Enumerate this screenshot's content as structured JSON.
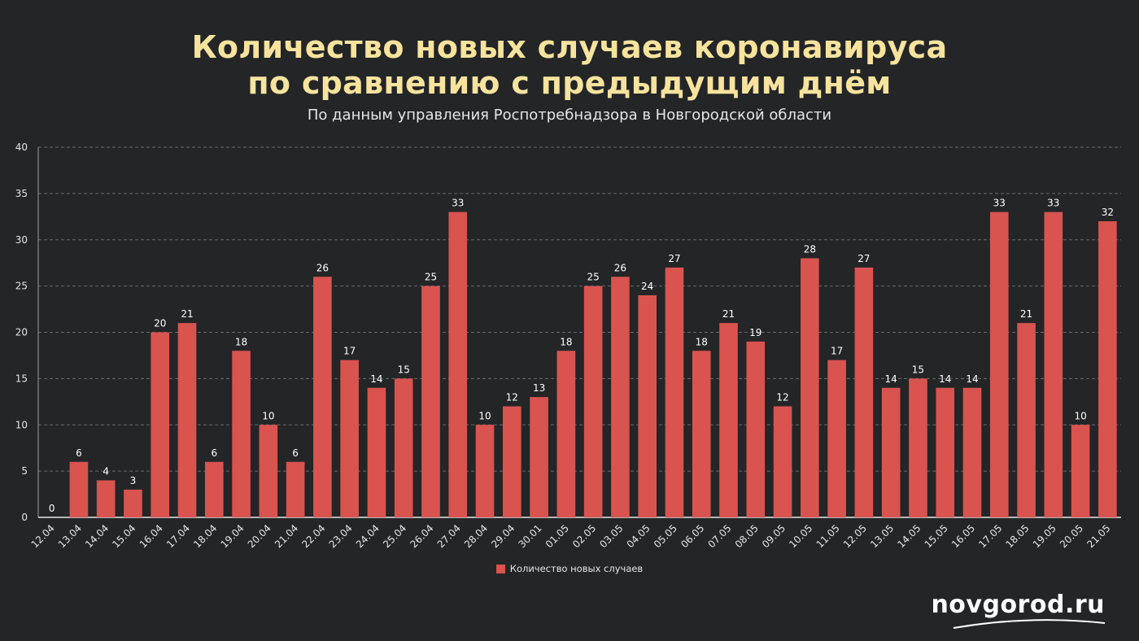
{
  "title_line1": "Количество новых случаев коронавируса",
  "title_line2": "по сравнению с предыдущим днём",
  "subtitle": "По данным управления Роспотребнадзора в Новгородской области",
  "brand": "novgorod.ru",
  "colors": {
    "background": "#232527",
    "bar": "#d9534f",
    "title": "#f7e39d"
  },
  "chart_data": {
    "type": "bar",
    "categories": [
      "12.04",
      "13.04",
      "14.04",
      "15.04",
      "16.04",
      "17.04",
      "18.04",
      "19.04",
      "20.04",
      "21.04",
      "22.04",
      "23.04",
      "24.04",
      "25.04",
      "26.04",
      "27.04",
      "28.04",
      "29.04",
      "30.01",
      "01.05",
      "02.05",
      "03.05",
      "04.05",
      "05.05",
      "06.05",
      "07.05",
      "08.05",
      "09.05",
      "10.05",
      "11.05",
      "12.05",
      "13.05",
      "14.05",
      "15.05",
      "16.05",
      "17.05",
      "18.05",
      "19.05",
      "20.05",
      "21.05"
    ],
    "series": [
      {
        "name": "Количество новых случаев",
        "values": [
          0,
          6,
          4,
          3,
          20,
          21,
          6,
          18,
          10,
          6,
          26,
          17,
          14,
          15,
          25,
          33,
          10,
          12,
          13,
          18,
          25,
          26,
          24,
          27,
          18,
          21,
          19,
          12,
          28,
          17,
          27,
          14,
          15,
          14,
          14,
          33,
          21,
          33,
          10,
          32
        ]
      }
    ],
    "ylim": [
      0,
      40
    ],
    "yticks": [
      0,
      5,
      10,
      15,
      20,
      25,
      30,
      35,
      40
    ],
    "grid": true,
    "legend_position": "bottom"
  }
}
